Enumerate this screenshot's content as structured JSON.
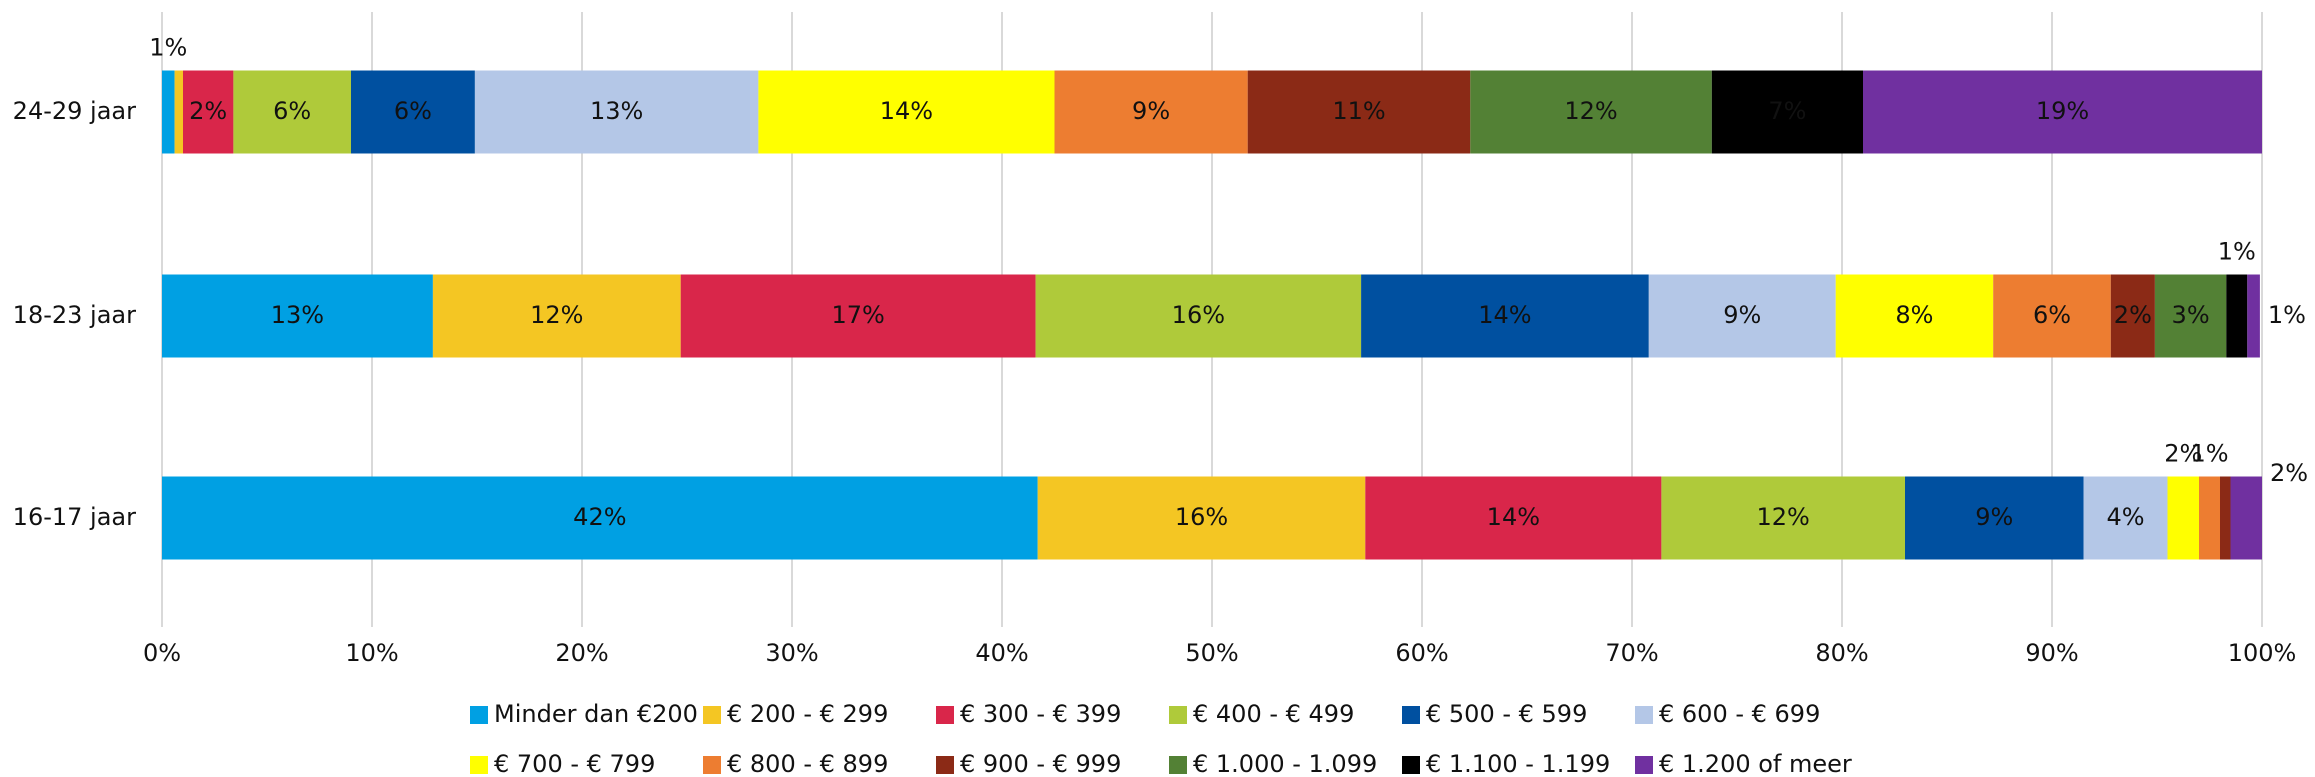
{
  "chart_data": {
    "type": "bar",
    "orientation": "horizontal",
    "stacked": true,
    "categories": [
      "24-29 jaar",
      "18-23 jaar",
      "16-17 jaar"
    ],
    "xlim": [
      0,
      100
    ],
    "xticks": [
      {
        "value": 0,
        "label": "0%"
      },
      {
        "value": 10,
        "label": "10%"
      },
      {
        "value": 20,
        "label": "20%"
      },
      {
        "value": 30,
        "label": "30%"
      },
      {
        "value": 40,
        "label": "40%"
      },
      {
        "value": 50,
        "label": "50%"
      },
      {
        "value": 60,
        "label": "60%"
      },
      {
        "value": 70,
        "label": "70%"
      },
      {
        "value": 80,
        "label": "80%"
      },
      {
        "value": 90,
        "label": "90%"
      },
      {
        "value": 100,
        "label": "100%"
      }
    ],
    "grid": true,
    "legend": "bottom",
    "series": [
      {
        "name": "Minder dan €200",
        "color": "#00a0e3",
        "values": [
          0.6,
          12.9,
          41.7
        ],
        "value_labels": [
          "1%",
          "13%",
          "42%"
        ]
      },
      {
        "name": "€ 200 - € 299",
        "color": "#f4c623",
        "values": [
          0.4,
          11.8,
          15.6
        ],
        "value_labels": [
          null,
          "12%",
          "16%"
        ]
      },
      {
        "name": "€ 300 - € 399",
        "color": "#d9264a",
        "values": [
          2.4,
          16.9,
          14.1
        ],
        "value_labels": [
          "2%",
          "17%",
          "14%"
        ]
      },
      {
        "name": "€ 400 - € 499",
        "color": "#afca3a",
        "values": [
          5.6,
          15.5,
          11.6
        ],
        "value_labels": [
          "6%",
          "16%",
          "12%"
        ]
      },
      {
        "name": "€ 500 - € 599",
        "color": "#0050a0",
        "values": [
          5.9,
          13.7,
          8.5
        ],
        "value_labels": [
          "6%",
          "14%",
          "9%"
        ]
      },
      {
        "name": "€ 600 - € 699",
        "color": "#b4c7e7",
        "values": [
          13.5,
          8.9,
          4.0
        ],
        "value_labels": [
          "13%",
          "9%",
          "4%"
        ]
      },
      {
        "name": "€ 700 - € 799",
        "color": "#ffff00",
        "values": [
          14.1,
          7.5,
          1.5
        ],
        "value_labels": [
          "14%",
          "8%",
          "2%"
        ]
      },
      {
        "name": "€ 800 - € 899",
        "color": "#ed7d31",
        "values": [
          9.2,
          5.6,
          1.0
        ],
        "value_labels": [
          "9%",
          "6%",
          "1%"
        ]
      },
      {
        "name": "€ 900 - € 999",
        "color": "#8b2a16",
        "values": [
          10.6,
          2.1,
          0.5
        ],
        "value_labels": [
          "11%",
          "2%",
          null
        ]
      },
      {
        "name": "€ 1.000 - 1.099",
        "color": "#538135",
        "values": [
          11.5,
          3.4,
          0
        ],
        "value_labels": [
          "12%",
          "3%",
          null
        ]
      },
      {
        "name": "€ 1.100 - 1.199",
        "color": "#000000",
        "values": [
          7.2,
          1.0,
          0
        ],
        "value_labels": [
          "7%",
          "1%",
          null
        ]
      },
      {
        "name": "€ 1.200 of meer",
        "color": "#7030a0",
        "values": [
          19.0,
          0.6,
          1.5
        ],
        "value_labels": [
          "19%",
          "1%",
          "2%"
        ]
      }
    ]
  }
}
